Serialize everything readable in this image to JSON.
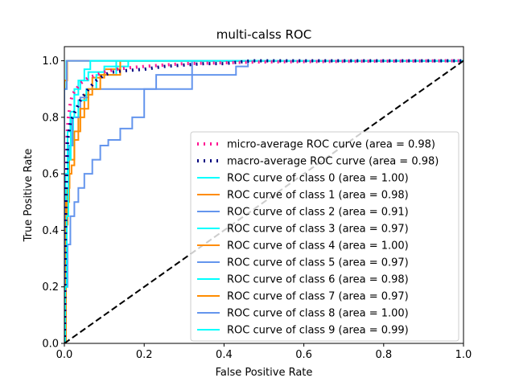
{
  "chart_data": {
    "type": "line",
    "title": "multi-calss ROC",
    "xlabel": "False Positive Rate",
    "ylabel": "True Positive Rate",
    "xlim": [
      0,
      1
    ],
    "ylim": [
      0,
      1.05
    ],
    "xticks": [
      "0.0",
      "0.2",
      "0.4",
      "0.6",
      "0.8",
      "1.0"
    ],
    "yticks": [
      "0.0",
      "0.2",
      "0.4",
      "0.6",
      "0.8",
      "1.0"
    ],
    "grid": false,
    "legend_position": "lower-right",
    "series": [
      {
        "name": "micro-average ROC curve (area = 0.98)",
        "color": "#ff1493",
        "style": "dotted-thick",
        "x": [
          0,
          0.003,
          0.006,
          0.01,
          0.015,
          0.02,
          0.03,
          0.04,
          0.06,
          0.08,
          0.1,
          0.13,
          0.16,
          0.2,
          0.25,
          0.3,
          0.4,
          0.5,
          0.7,
          1.0
        ],
        "y": [
          0,
          0.5,
          0.72,
          0.8,
          0.85,
          0.88,
          0.9,
          0.92,
          0.94,
          0.95,
          0.96,
          0.97,
          0.975,
          0.98,
          0.985,
          0.99,
          0.993,
          0.996,
          0.998,
          1.0
        ]
      },
      {
        "name": "macro-average ROC curve (area = 0.98)",
        "color": "#000080",
        "style": "dotted-thick",
        "x": [
          0,
          0.003,
          0.008,
          0.015,
          0.02,
          0.03,
          0.04,
          0.06,
          0.08,
          0.1,
          0.12,
          0.15,
          0.2,
          0.25,
          0.3,
          0.35,
          0.4,
          0.47,
          1.0
        ],
        "y": [
          0,
          0.45,
          0.72,
          0.78,
          0.8,
          0.83,
          0.86,
          0.9,
          0.93,
          0.95,
          0.96,
          0.965,
          0.97,
          0.98,
          0.985,
          0.99,
          0.99,
          1.0,
          1.0
        ]
      },
      {
        "name": "ROC curve of class 0 (area = 1.00)",
        "color": "#00ffff",
        "style": "solid",
        "x": [
          0,
          0,
          0.005,
          0.005,
          1.0
        ],
        "y": [
          0,
          0.9,
          0.9,
          1.0,
          1.0
        ]
      },
      {
        "name": "ROC curve of class 1 (area = 0.98)",
        "color": "#ff8c00",
        "style": "solid",
        "x": [
          0,
          0.002,
          0.002,
          0.008,
          0.008,
          0.013,
          0.013,
          0.018,
          0.018,
          0.025,
          0.025,
          0.035,
          0.035,
          0.05,
          0.05,
          0.07,
          0.07,
          0.1,
          0.1,
          0.14,
          0.14,
          1.0
        ],
        "y": [
          0,
          0,
          0.42,
          0.42,
          0.55,
          0.55,
          0.6,
          0.6,
          0.63,
          0.63,
          0.72,
          0.72,
          0.8,
          0.8,
          0.88,
          0.88,
          0.94,
          0.94,
          0.97,
          0.97,
          1.0,
          1.0
        ]
      },
      {
        "name": "ROC curve of class 2 (area = 0.91)",
        "color": "#6495ed",
        "style": "solid",
        "x": [
          0,
          0.002,
          0.002,
          0.008,
          0.008,
          0.015,
          0.015,
          0.025,
          0.025,
          0.035,
          0.035,
          0.05,
          0.05,
          0.07,
          0.07,
          0.09,
          0.09,
          0.11,
          0.11,
          0.14,
          0.14,
          0.17,
          0.17,
          0.2,
          0.2,
          0.32,
          0.32,
          0.43,
          0.43,
          0.46,
          0.46,
          1.0
        ],
        "y": [
          0,
          0,
          0.2,
          0.2,
          0.35,
          0.35,
          0.45,
          0.45,
          0.5,
          0.5,
          0.55,
          0.55,
          0.6,
          0.6,
          0.65,
          0.65,
          0.7,
          0.7,
          0.72,
          0.72,
          0.76,
          0.76,
          0.8,
          0.8,
          0.9,
          0.9,
          0.95,
          0.95,
          0.98,
          0.98,
          1.0,
          1.0
        ]
      },
      {
        "name": "ROC curve of class 3 (area = 0.97)",
        "color": "#00ffff",
        "style": "solid",
        "x": [
          0,
          0.004,
          0.004,
          0.012,
          0.012,
          0.022,
          0.022,
          0.035,
          0.035,
          0.055,
          0.055,
          0.08,
          0.08,
          0.13,
          0.13,
          1.0
        ],
        "y": [
          0,
          0,
          0.55,
          0.55,
          0.7,
          0.7,
          0.8,
          0.8,
          0.86,
          0.86,
          0.9,
          0.9,
          0.95,
          0.95,
          1.0,
          1.0
        ]
      },
      {
        "name": "ROC curve of class 4 (area = 1.00)",
        "color": "#ff8c00",
        "style": "solid",
        "x": [
          0,
          0,
          0.007,
          0.007,
          1.0
        ],
        "y": [
          0,
          0.93,
          0.93,
          1.0,
          1.0
        ]
      },
      {
        "name": "ROC curve of class 5 (area = 0.97)",
        "color": "#6495ed",
        "style": "solid",
        "x": [
          0,
          0.003,
          0.003,
          0.01,
          0.01,
          0.02,
          0.02,
          0.04,
          0.04,
          0.06,
          0.06,
          0.23,
          0.23,
          0.32,
          0.32,
          1.0
        ],
        "y": [
          0,
          0,
          0.5,
          0.5,
          0.7,
          0.7,
          0.8,
          0.8,
          0.87,
          0.87,
          0.9,
          0.9,
          0.95,
          0.95,
          1.0,
          1.0
        ]
      },
      {
        "name": "ROC curve of class 6 (area = 0.98)",
        "color": "#00ffff",
        "style": "solid",
        "x": [
          0,
          0.003,
          0.003,
          0.008,
          0.008,
          0.015,
          0.015,
          0.025,
          0.025,
          0.04,
          0.04,
          0.06,
          0.06,
          0.1,
          0.1,
          0.16,
          0.16,
          1.0
        ],
        "y": [
          0,
          0,
          0.6,
          0.6,
          0.75,
          0.75,
          0.82,
          0.82,
          0.9,
          0.9,
          0.93,
          0.93,
          0.96,
          0.96,
          0.98,
          0.98,
          1.0,
          1.0
        ]
      },
      {
        "name": "ROC curve of class 7 (area = 0.97)",
        "color": "#ff8c00",
        "style": "solid",
        "x": [
          0,
          0.004,
          0.004,
          0.012,
          0.012,
          0.025,
          0.025,
          0.04,
          0.04,
          0.06,
          0.06,
          0.09,
          0.09,
          0.14,
          0.14,
          1.0
        ],
        "y": [
          0,
          0,
          0.5,
          0.5,
          0.65,
          0.65,
          0.75,
          0.75,
          0.83,
          0.83,
          0.9,
          0.9,
          0.95,
          0.95,
          1.0,
          1.0
        ]
      },
      {
        "name": "ROC curve of class 8 (area = 1.00)",
        "color": "#6495ed",
        "style": "solid",
        "x": [
          0,
          0,
          0.006,
          0.006,
          1.0
        ],
        "y": [
          0,
          0.9,
          0.9,
          1.0,
          1.0
        ]
      },
      {
        "name": "ROC curve of class 9 (area = 0.99)",
        "color": "#00ffff",
        "style": "solid",
        "x": [
          0,
          0.002,
          0.002,
          0.006,
          0.006,
          0.01,
          0.01,
          0.016,
          0.016,
          0.025,
          0.025,
          0.035,
          0.035,
          0.05,
          0.05,
          0.065,
          0.065,
          1.0
        ],
        "y": [
          0,
          0,
          0.2,
          0.2,
          0.45,
          0.45,
          0.65,
          0.65,
          0.8,
          0.8,
          0.88,
          0.88,
          0.93,
          0.93,
          0.97,
          0.97,
          1.0,
          1.0
        ]
      },
      {
        "name": "",
        "color": "#000000",
        "style": "dashed",
        "x": [
          0,
          1
        ],
        "y": [
          0,
          1
        ]
      }
    ]
  }
}
